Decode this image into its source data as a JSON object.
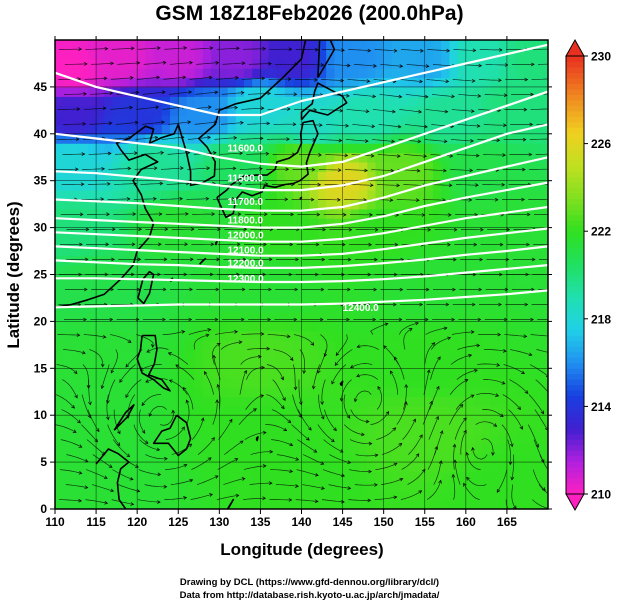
{
  "title": "GSM 18Z18Feb2026 (200.0hPa)",
  "credits": {
    "line1": "Drawing by DCL (https://www.gfd-dennou.org/library/dcl/)",
    "line2": "Data from http://database.rish.kyoto-u.ac.jp/arch/jmadata/"
  },
  "colors": {
    "field_low": "#e020c0",
    "field_mid": "#22d4b4",
    "field_high": "#e83020",
    "contour": "#ffffff",
    "streamline": "#000000",
    "grid": "#000000"
  },
  "chart_data": {
    "type": "heatmap",
    "title": "GSM 18Z18Feb2026 (200.0hPa)",
    "xlabel": "Longitude (degrees)",
    "ylabel": "Latitude  (degrees)",
    "xlim": [
      110,
      170
    ],
    "ylim": [
      0,
      50
    ],
    "xticks": [
      110,
      115,
      120,
      125,
      130,
      135,
      140,
      145,
      150,
      155,
      160,
      165
    ],
    "yticks": [
      0,
      5,
      10,
      15,
      20,
      25,
      30,
      35,
      40,
      45
    ],
    "grid": true,
    "grid_spacing_deg": 5,
    "colorbar": {
      "min": 210,
      "max": 230,
      "ticks": [
        210,
        214,
        218,
        222,
        226,
        230
      ],
      "stops": [
        {
          "value": 210,
          "color": "#ff20c0"
        },
        {
          "value": 211.5,
          "color": "#b020e0"
        },
        {
          "value": 213,
          "color": "#4020d0"
        },
        {
          "value": 214.5,
          "color": "#1840e0"
        },
        {
          "value": 216,
          "color": "#2090f0"
        },
        {
          "value": 217.5,
          "color": "#20d0e8"
        },
        {
          "value": 219,
          "color": "#20e0b0"
        },
        {
          "value": 220.5,
          "color": "#20e060"
        },
        {
          "value": 222,
          "color": "#30e020"
        },
        {
          "value": 223.5,
          "color": "#80e020"
        },
        {
          "value": 225,
          "color": "#c0e020"
        },
        {
          "value": 226.5,
          "color": "#f0d020"
        },
        {
          "value": 228,
          "color": "#f09020"
        },
        {
          "value": 230,
          "color": "#e83020"
        }
      ]
    },
    "field_samples": [
      {
        "lon": 112,
        "lat": 47,
        "value": 210
      },
      {
        "lon": 118,
        "lat": 48,
        "value": 210.5
      },
      {
        "lon": 125,
        "lat": 48,
        "value": 211
      },
      {
        "lon": 132,
        "lat": 48,
        "value": 212
      },
      {
        "lon": 139,
        "lat": 48,
        "value": 213
      },
      {
        "lon": 146,
        "lat": 48,
        "value": 216
      },
      {
        "lon": 155,
        "lat": 48,
        "value": 216.5
      },
      {
        "lon": 162,
        "lat": 48,
        "value": 219
      },
      {
        "lon": 168,
        "lat": 48,
        "value": 220
      },
      {
        "lon": 112,
        "lat": 42,
        "value": 213
      },
      {
        "lon": 120,
        "lat": 42,
        "value": 214
      },
      {
        "lon": 128,
        "lat": 42,
        "value": 216
      },
      {
        "lon": 135,
        "lat": 43,
        "value": 218
      },
      {
        "lon": 141,
        "lat": 41,
        "value": 218.5
      },
      {
        "lon": 148,
        "lat": 42,
        "value": 219
      },
      {
        "lon": 158,
        "lat": 42,
        "value": 219.5
      },
      {
        "lon": 166,
        "lat": 43,
        "value": 220
      },
      {
        "lon": 112,
        "lat": 37,
        "value": 218
      },
      {
        "lon": 122,
        "lat": 37,
        "value": 219.5
      },
      {
        "lon": 132,
        "lat": 37,
        "value": 220.5
      },
      {
        "lon": 140,
        "lat": 37,
        "value": 223
      },
      {
        "lon": 145,
        "lat": 35,
        "value": 226
      },
      {
        "lon": 152,
        "lat": 36,
        "value": 223
      },
      {
        "lon": 162,
        "lat": 36,
        "value": 221
      },
      {
        "lon": 112,
        "lat": 30,
        "value": 220
      },
      {
        "lon": 125,
        "lat": 30,
        "value": 221.5
      },
      {
        "lon": 138,
        "lat": 30,
        "value": 222
      },
      {
        "lon": 150,
        "lat": 30,
        "value": 222
      },
      {
        "lon": 165,
        "lat": 30,
        "value": 221.5
      },
      {
        "lon": 115,
        "lat": 24,
        "value": 221
      },
      {
        "lon": 135,
        "lat": 24,
        "value": 221.5
      },
      {
        "lon": 155,
        "lat": 24,
        "value": 221.5
      },
      {
        "lon": 115,
        "lat": 16,
        "value": 221.5
      },
      {
        "lon": 135,
        "lat": 16,
        "value": 222.5
      },
      {
        "lon": 155,
        "lat": 16,
        "value": 222
      },
      {
        "lon": 115,
        "lat": 8,
        "value": 221.5
      },
      {
        "lon": 135,
        "lat": 8,
        "value": 222
      },
      {
        "lon": 155,
        "lat": 8,
        "value": 222.5
      },
      {
        "lon": 115,
        "lat": 2,
        "value": 221.5
      },
      {
        "lon": 140,
        "lat": 2,
        "value": 222
      },
      {
        "lon": 165,
        "lat": 2,
        "value": 222
      }
    ],
    "contours": [
      {
        "label": "11600.0",
        "label_lon": 131,
        "label_lat": 38.5,
        "points": [
          [
            110,
            40
          ],
          [
            115,
            39.5
          ],
          [
            120,
            39
          ],
          [
            125,
            38.5
          ],
          [
            130,
            37.5
          ],
          [
            135,
            36.8
          ],
          [
            140,
            36.5
          ],
          [
            145,
            37
          ],
          [
            150,
            38.5
          ],
          [
            155,
            40
          ],
          [
            160,
            41.5
          ],
          [
            165,
            43
          ],
          [
            170,
            44.5
          ]
        ]
      },
      {
        "label": "11500.0",
        "label_lon": 131,
        "label_lat": 35.3,
        "points": [
          [
            110,
            36
          ],
          [
            115,
            35.8
          ],
          [
            120,
            35.4
          ],
          [
            125,
            35
          ],
          [
            130,
            34.5
          ],
          [
            135,
            34
          ],
          [
            140,
            34
          ],
          [
            145,
            34.5
          ],
          [
            150,
            35.5
          ],
          [
            155,
            37
          ],
          [
            160,
            38.5
          ],
          [
            165,
            40
          ],
          [
            170,
            41
          ]
        ]
      },
      {
        "label": "11700.0",
        "label_lon": 131,
        "label_lat": 32.8,
        "points": [
          [
            110,
            33
          ],
          [
            115,
            32.8
          ],
          [
            120,
            32.6
          ],
          [
            125,
            32.3
          ],
          [
            130,
            32
          ],
          [
            135,
            31.8
          ],
          [
            140,
            31.8
          ],
          [
            145,
            32.2
          ],
          [
            150,
            33.2
          ],
          [
            155,
            34.5
          ],
          [
            160,
            35.5
          ],
          [
            165,
            36.5
          ],
          [
            170,
            37.5
          ]
        ]
      },
      {
        "label": "11800.0",
        "label_lon": 131,
        "label_lat": 30.8,
        "points": [
          [
            110,
            31
          ],
          [
            115,
            30.8
          ],
          [
            120,
            30.6
          ],
          [
            125,
            30.4
          ],
          [
            130,
            30.2
          ],
          [
            135,
            30
          ],
          [
            140,
            30
          ],
          [
            145,
            30.4
          ],
          [
            150,
            31.2
          ],
          [
            155,
            32.3
          ],
          [
            160,
            33.2
          ],
          [
            165,
            34
          ],
          [
            170,
            34.8
          ]
        ]
      },
      {
        "label": "12000.0",
        "label_lon": 131,
        "label_lat": 29.2,
        "points": [
          [
            110,
            29.5
          ],
          [
            115,
            29.3
          ],
          [
            120,
            29.1
          ],
          [
            125,
            28.9
          ],
          [
            130,
            28.7
          ],
          [
            135,
            28.5
          ],
          [
            140,
            28.5
          ],
          [
            145,
            28.8
          ],
          [
            150,
            29.4
          ],
          [
            155,
            30.2
          ],
          [
            160,
            31
          ],
          [
            165,
            31.6
          ],
          [
            170,
            32.2
          ]
        ]
      },
      {
        "label": "12100.0",
        "label_lon": 131,
        "label_lat": 27.6,
        "points": [
          [
            110,
            28
          ],
          [
            115,
            27.8
          ],
          [
            120,
            27.6
          ],
          [
            125,
            27.4
          ],
          [
            130,
            27.2
          ],
          [
            135,
            27
          ],
          [
            140,
            27
          ],
          [
            145,
            27.2
          ],
          [
            150,
            27.7
          ],
          [
            155,
            28.3
          ],
          [
            160,
            28.9
          ],
          [
            165,
            29.4
          ],
          [
            170,
            29.9
          ]
        ]
      },
      {
        "label": "12200.0",
        "label_lon": 131,
        "label_lat": 26.2,
        "points": [
          [
            110,
            26.5
          ],
          [
            115,
            26.3
          ],
          [
            120,
            26.1
          ],
          [
            125,
            26
          ],
          [
            130,
            25.8
          ],
          [
            135,
            25.7
          ],
          [
            140,
            25.7
          ],
          [
            145,
            25.9
          ],
          [
            150,
            26.2
          ],
          [
            155,
            26.6
          ],
          [
            160,
            27.1
          ],
          [
            165,
            27.5
          ],
          [
            170,
            28
          ]
        ]
      },
      {
        "label": "12300.0",
        "label_lon": 131,
        "label_lat": 24.6,
        "points": [
          [
            110,
            24.6
          ],
          [
            115,
            24.6
          ],
          [
            120,
            24.5
          ],
          [
            125,
            24.4
          ],
          [
            130,
            24.3
          ],
          [
            135,
            24.2
          ],
          [
            140,
            24.2
          ],
          [
            145,
            24.3
          ],
          [
            150,
            24.5
          ],
          [
            155,
            24.8
          ],
          [
            160,
            25.2
          ],
          [
            165,
            25.6
          ],
          [
            170,
            26
          ]
        ]
      },
      {
        "label": "12400.0",
        "label_lon": 145,
        "label_lat": 21.5,
        "points": [
          [
            110,
            21.5
          ],
          [
            115,
            21.6
          ],
          [
            120,
            21.7
          ],
          [
            125,
            21.8
          ],
          [
            130,
            21.8
          ],
          [
            135,
            21.8
          ],
          [
            140,
            21.8
          ],
          [
            145,
            21.9
          ],
          [
            150,
            22.1
          ],
          [
            155,
            22.3
          ],
          [
            160,
            22.6
          ],
          [
            165,
            22.9
          ],
          [
            170,
            23.3
          ]
        ]
      },
      {
        "label": "",
        "label_lon": 0,
        "label_lat": 0,
        "points": [
          [
            110,
            46.5
          ],
          [
            115,
            45
          ],
          [
            120,
            44
          ],
          [
            125,
            43
          ],
          [
            130,
            42
          ],
          [
            135,
            42
          ],
          [
            140,
            43.5
          ],
          [
            145,
            44.5
          ],
          [
            150,
            45.5
          ],
          [
            155,
            46.5
          ],
          [
            160,
            47.5
          ],
          [
            165,
            48.5
          ],
          [
            170,
            49.5
          ]
        ]
      }
    ]
  }
}
